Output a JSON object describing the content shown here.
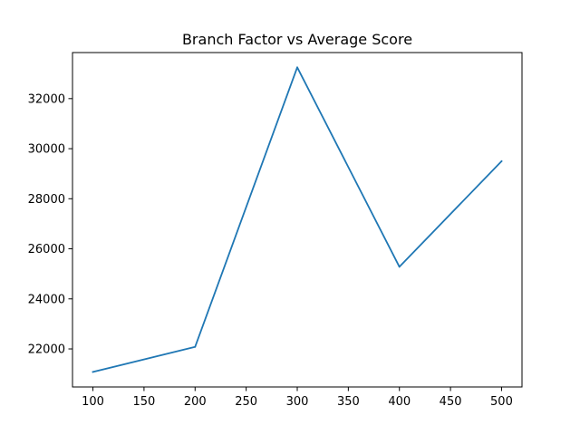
{
  "chart_data": {
    "type": "line",
    "title": "Branch Factor vs Average Score",
    "xlabel": "",
    "ylabel": "",
    "x": [
      100,
      200,
      300,
      400,
      500
    ],
    "series": [
      {
        "values": [
          21080,
          22080,
          33250,
          25280,
          29500
        ],
        "color": "#1f77b4"
      }
    ],
    "xlim": [
      80,
      520
    ],
    "ylim": [
      20480,
      33840
    ],
    "xticks": [
      100,
      150,
      200,
      250,
      300,
      350,
      400,
      450,
      500
    ],
    "yticks": [
      22000,
      24000,
      26000,
      28000,
      30000,
      32000
    ],
    "grid": false,
    "legend": "none"
  }
}
